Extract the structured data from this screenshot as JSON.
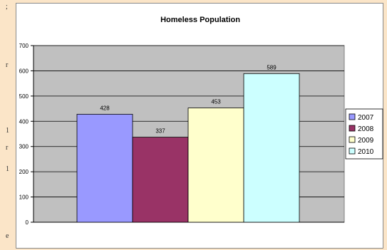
{
  "stray_text": [
    ";",
    "r",
    "1",
    "r",
    "1",
    "e"
  ],
  "chart_data": {
    "type": "bar",
    "title": "Homeless Population",
    "xlabel": "",
    "ylabel": "",
    "ylim": [
      0,
      700
    ],
    "yticks": [
      0,
      100,
      200,
      300,
      400,
      500,
      600,
      700
    ],
    "grid": true,
    "legend": "right",
    "series": [
      {
        "name": "2007",
        "value": 428,
        "color": "#9999ff"
      },
      {
        "name": "2008",
        "value": 337,
        "color": "#993366"
      },
      {
        "name": "2009",
        "value": 453,
        "color": "#ffffcc"
      },
      {
        "name": "2010",
        "value": 589,
        "color": "#ccffff"
      }
    ],
    "plot_background": "#c0c0c0"
  }
}
